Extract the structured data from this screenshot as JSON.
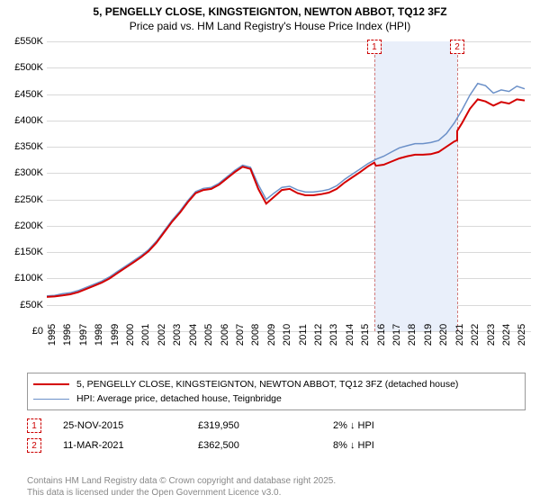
{
  "title": {
    "line1": "5, PENGELLY CLOSE, KINGSTEIGNTON, NEWTON ABBOT, TQ12 3FZ",
    "line2": "Price paid vs. HM Land Registry's House Price Index (HPI)",
    "fontsize": 12
  },
  "chart": {
    "type": "line",
    "background_color": "#ffffff",
    "grid_color": "#d9d9d9",
    "axis_label_fontsize": 11,
    "y": {
      "min": 0,
      "max": 550000,
      "tick_step": 50000,
      "ticks": [
        "£0",
        "£50K",
        "£100K",
        "£150K",
        "£200K",
        "£250K",
        "£300K",
        "£350K",
        "£400K",
        "£450K",
        "£500K",
        "£550K"
      ]
    },
    "x": {
      "min": 1995,
      "max": 2025.9,
      "ticks": [
        "1995",
        "1996",
        "1997",
        "1998",
        "1999",
        "2000",
        "2001",
        "2002",
        "2003",
        "2004",
        "2005",
        "2006",
        "2007",
        "2008",
        "2009",
        "2010",
        "2011",
        "2012",
        "2013",
        "2014",
        "2015",
        "2016",
        "2017",
        "2018",
        "2019",
        "2020",
        "2021",
        "2022",
        "2023",
        "2024",
        "2025"
      ]
    },
    "series": [
      {
        "name": "price_paid",
        "label": "5, PENGELLY CLOSE, KINGSTEIGNTON, NEWTON ABBOT, TQ12 3FZ (detached house)",
        "color": "#d40000",
        "line_width": 2,
        "points": [
          [
            1995.0,
            65000
          ],
          [
            1995.5,
            66000
          ],
          [
            1996.0,
            68000
          ],
          [
            1996.5,
            70000
          ],
          [
            1997.0,
            74000
          ],
          [
            1997.5,
            80000
          ],
          [
            1998.0,
            86000
          ],
          [
            1998.5,
            92000
          ],
          [
            1999.0,
            100000
          ],
          [
            1999.5,
            110000
          ],
          [
            2000.0,
            120000
          ],
          [
            2000.5,
            130000
          ],
          [
            2001.0,
            140000
          ],
          [
            2001.5,
            152000
          ],
          [
            2002.0,
            168000
          ],
          [
            2002.5,
            188000
          ],
          [
            2003.0,
            208000
          ],
          [
            2003.5,
            225000
          ],
          [
            2004.0,
            245000
          ],
          [
            2004.5,
            262000
          ],
          [
            2005.0,
            268000
          ],
          [
            2005.5,
            270000
          ],
          [
            2006.0,
            278000
          ],
          [
            2006.5,
            290000
          ],
          [
            2007.0,
            302000
          ],
          [
            2007.5,
            312000
          ],
          [
            2008.0,
            308000
          ],
          [
            2008.5,
            270000
          ],
          [
            2009.0,
            242000
          ],
          [
            2009.5,
            255000
          ],
          [
            2010.0,
            268000
          ],
          [
            2010.5,
            270000
          ],
          [
            2011.0,
            262000
          ],
          [
            2011.5,
            258000
          ],
          [
            2012.0,
            258000
          ],
          [
            2012.5,
            260000
          ],
          [
            2013.0,
            263000
          ],
          [
            2013.5,
            270000
          ],
          [
            2014.0,
            282000
          ],
          [
            2014.5,
            292000
          ],
          [
            2015.0,
            302000
          ],
          [
            2015.5,
            313000
          ],
          [
            2015.9,
            319950
          ],
          [
            2016.0,
            314000
          ],
          [
            2016.5,
            316000
          ],
          [
            2017.0,
            322000
          ],
          [
            2017.5,
            328000
          ],
          [
            2018.0,
            332000
          ],
          [
            2018.5,
            335000
          ],
          [
            2019.0,
            335000
          ],
          [
            2019.5,
            336000
          ],
          [
            2020.0,
            340000
          ],
          [
            2020.5,
            350000
          ],
          [
            2021.0,
            360000
          ],
          [
            2021.19,
            362500
          ],
          [
            2021.19,
            380000
          ],
          [
            2021.5,
            395000
          ],
          [
            2022.0,
            422000
          ],
          [
            2022.5,
            440000
          ],
          [
            2023.0,
            436000
          ],
          [
            2023.5,
            428000
          ],
          [
            2024.0,
            435000
          ],
          [
            2024.5,
            432000
          ],
          [
            2025.0,
            440000
          ],
          [
            2025.5,
            438000
          ]
        ]
      },
      {
        "name": "hpi",
        "label": "HPI: Average price, detached house, Teignbridge",
        "color": "#6b90c8",
        "line_width": 1.5,
        "points": [
          [
            1995.0,
            67000
          ],
          [
            1995.5,
            68000
          ],
          [
            1996.0,
            71000
          ],
          [
            1996.5,
            73000
          ],
          [
            1997.0,
            77000
          ],
          [
            1997.5,
            83000
          ],
          [
            1998.0,
            89000
          ],
          [
            1998.5,
            95000
          ],
          [
            1999.0,
            103000
          ],
          [
            1999.5,
            113000
          ],
          [
            2000.0,
            123000
          ],
          [
            2000.5,
            133000
          ],
          [
            2001.0,
            143000
          ],
          [
            2001.5,
            155000
          ],
          [
            2002.0,
            171000
          ],
          [
            2002.5,
            191000
          ],
          [
            2003.0,
            211000
          ],
          [
            2003.5,
            228000
          ],
          [
            2004.0,
            248000
          ],
          [
            2004.5,
            265000
          ],
          [
            2005.0,
            271000
          ],
          [
            2005.5,
            273000
          ],
          [
            2006.0,
            281000
          ],
          [
            2006.5,
            293000
          ],
          [
            2007.0,
            305000
          ],
          [
            2007.5,
            315000
          ],
          [
            2008.0,
            311000
          ],
          [
            2008.5,
            278000
          ],
          [
            2009.0,
            250000
          ],
          [
            2009.5,
            262000
          ],
          [
            2010.0,
            273000
          ],
          [
            2010.5,
            275000
          ],
          [
            2011.0,
            268000
          ],
          [
            2011.5,
            264000
          ],
          [
            2012.0,
            264000
          ],
          [
            2012.5,
            266000
          ],
          [
            2013.0,
            269000
          ],
          [
            2013.5,
            276000
          ],
          [
            2014.0,
            288000
          ],
          [
            2014.5,
            298000
          ],
          [
            2015.0,
            308000
          ],
          [
            2015.5,
            318000
          ],
          [
            2016.0,
            326000
          ],
          [
            2016.5,
            332000
          ],
          [
            2017.0,
            340000
          ],
          [
            2017.5,
            348000
          ],
          [
            2018.0,
            352000
          ],
          [
            2018.5,
            356000
          ],
          [
            2019.0,
            356000
          ],
          [
            2019.5,
            358000
          ],
          [
            2020.0,
            362000
          ],
          [
            2020.5,
            375000
          ],
          [
            2021.0,
            395000
          ],
          [
            2021.5,
            420000
          ],
          [
            2022.0,
            448000
          ],
          [
            2022.5,
            470000
          ],
          [
            2023.0,
            466000
          ],
          [
            2023.5,
            452000
          ],
          [
            2024.0,
            458000
          ],
          [
            2024.5,
            455000
          ],
          [
            2025.0,
            465000
          ],
          [
            2025.5,
            460000
          ]
        ]
      }
    ],
    "events": [
      {
        "marker": "1",
        "x": 2015.9,
        "band_start": 2015.9,
        "band_end": 2021.19,
        "band_color": "#e9effa",
        "line_color": "#d07878"
      },
      {
        "marker": "2",
        "x": 2021.19,
        "band_start": null,
        "band_end": null,
        "band_color": null,
        "line_color": "#d07878"
      }
    ]
  },
  "legend": {
    "border_color": "#999999",
    "fontsize": 10.5
  },
  "sales": [
    {
      "marker": "1",
      "date": "25-NOV-2015",
      "price": "£319,950",
      "delta": "2% ↓ HPI"
    },
    {
      "marker": "2",
      "date": "11-MAR-2021",
      "price": "£362,500",
      "delta": "8% ↓ HPI"
    }
  ],
  "footer": {
    "line1": "Contains HM Land Registry data © Crown copyright and database right 2025.",
    "line2": "This data is licensed under the Open Government Licence v3.0.",
    "color": "#888888",
    "fontsize": 10
  }
}
